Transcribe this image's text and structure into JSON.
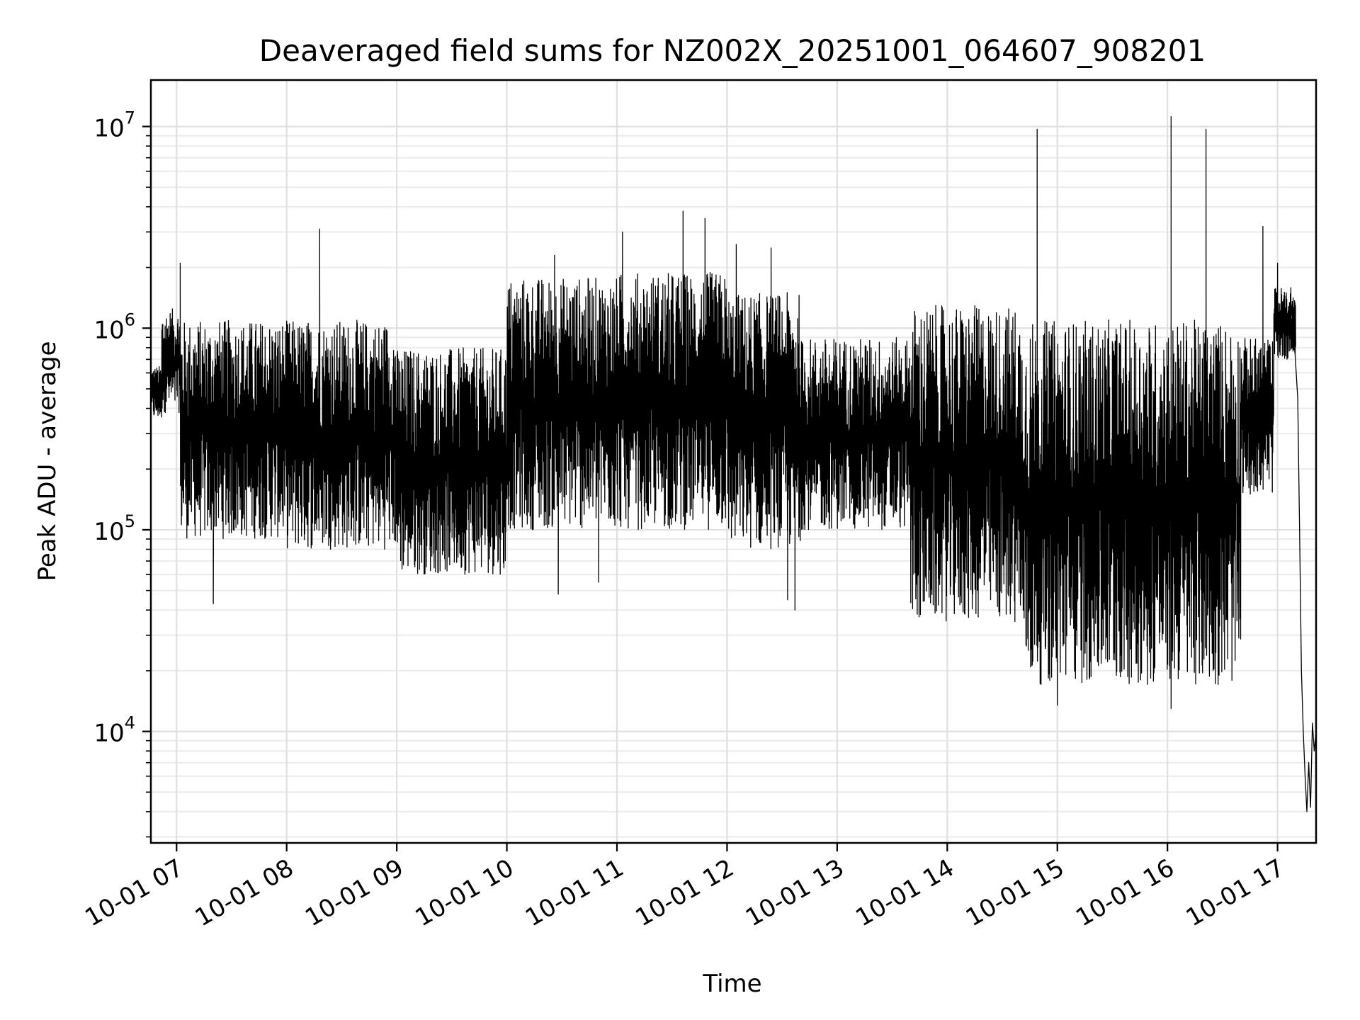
{
  "chart_data": {
    "type": "line",
    "title": "Deaveraged field sums for NZ002X_20251001_064607_908201",
    "xlabel": "Time",
    "ylabel": "Peak ADU - average",
    "yscale": "log",
    "ylim": [
      2800,
      17000000
    ],
    "xlim": [
      "2025-10-01 06:46",
      "2025-10-01 17:21"
    ],
    "grid": true,
    "line_color": "#000000",
    "x_ticks": [
      "10-01 07",
      "10-01 08",
      "10-01 09",
      "10-01 10",
      "10-01 11",
      "10-01 12",
      "10-01 13",
      "10-01 14",
      "10-01 15",
      "10-01 16",
      "10-01 17"
    ],
    "x_tick_times": [
      "2025-10-01 07:00",
      "2025-10-01 08:00",
      "2025-10-01 09:00",
      "2025-10-01 10:00",
      "2025-10-01 11:00",
      "2025-10-01 12:00",
      "2025-10-01 13:00",
      "2025-10-01 14:00",
      "2025-10-01 15:00",
      "2025-10-01 16:00",
      "2025-10-01 17:00"
    ],
    "y_ticks": [
      {
        "value": 10000,
        "base": "10",
        "exp": "4"
      },
      {
        "value": 100000,
        "base": "10",
        "exp": "5"
      },
      {
        "value": 1000000,
        "base": "10",
        "exp": "6"
      },
      {
        "value": 10000000,
        "base": "10",
        "exp": "7"
      }
    ],
    "series": [
      {
        "segments": [
          {
            "start": "2025-10-01 06:46",
            "end": "2025-10-01 06:52",
            "low": 350000,
            "high": 650000
          },
          {
            "start": "2025-10-01 06:52",
            "end": "2025-10-01 07:02",
            "low": 380000,
            "high": 1250000
          },
          {
            "start": "2025-10-01 07:02",
            "end": "2025-10-01 08:00",
            "low": 90000,
            "high": 1100000
          },
          {
            "start": "2025-10-01 08:00",
            "end": "2025-10-01 09:00",
            "low": 80000,
            "high": 1100000
          },
          {
            "start": "2025-10-01 09:00",
            "end": "2025-10-01 10:00",
            "low": 60000,
            "high": 800000
          },
          {
            "start": "2025-10-01 10:00",
            "end": "2025-10-01 11:00",
            "low": 100000,
            "high": 1800000
          },
          {
            "start": "2025-10-01 11:00",
            "end": "2025-10-01 12:00",
            "low": 100000,
            "high": 1900000
          },
          {
            "start": "2025-10-01 12:00",
            "end": "2025-10-01 12:40",
            "low": 80000,
            "high": 1500000
          },
          {
            "start": "2025-10-01 12:40",
            "end": "2025-10-01 13:40",
            "low": 100000,
            "high": 900000
          },
          {
            "start": "2025-10-01 13:40",
            "end": "2025-10-01 14:40",
            "low": 35000,
            "high": 1300000
          },
          {
            "start": "2025-10-01 14:40",
            "end": "2025-10-01 16:40",
            "low": 17000,
            "high": 1100000
          },
          {
            "start": "2025-10-01 16:40",
            "end": "2025-10-01 16:58",
            "low": 150000,
            "high": 900000
          },
          {
            "start": "2025-10-01 16:58",
            "end": "2025-10-01 17:10",
            "low": 700000,
            "high": 1600000
          }
        ],
        "spikes": [
          {
            "t": "2025-10-01 07:02",
            "v": 2100000
          },
          {
            "t": "2025-10-01 07:20",
            "v": 43000
          },
          {
            "t": "2025-10-01 08:18",
            "v": 3100000
          },
          {
            "t": "2025-10-01 10:26",
            "v": 2300000
          },
          {
            "t": "2025-10-01 10:28",
            "v": 48000
          },
          {
            "t": "2025-10-01 10:50",
            "v": 55000
          },
          {
            "t": "2025-10-01 11:03",
            "v": 3000000
          },
          {
            "t": "2025-10-01 11:36",
            "v": 3800000
          },
          {
            "t": "2025-10-01 11:48",
            "v": 3500000
          },
          {
            "t": "2025-10-01 12:05",
            "v": 2600000
          },
          {
            "t": "2025-10-01 12:24",
            "v": 2500000
          },
          {
            "t": "2025-10-01 12:33",
            "v": 45000
          },
          {
            "t": "2025-10-01 12:37",
            "v": 40000
          },
          {
            "t": "2025-10-01 14:49",
            "v": 9700000
          },
          {
            "t": "2025-10-01 15:00",
            "v": 13500
          },
          {
            "t": "2025-10-01 16:02",
            "v": 11200000
          },
          {
            "t": "2025-10-01 16:02",
            "v": 13000
          },
          {
            "t": "2025-10-01 16:21",
            "v": 9700000
          },
          {
            "t": "2025-10-01 16:52",
            "v": 3200000
          },
          {
            "t": "2025-10-01 17:00",
            "v": 2100000
          }
        ],
        "tail": [
          {
            "t": "2025-10-01 17:07",
            "v": 1400000
          },
          {
            "t": "2025-10-01 17:09",
            "v": 900000
          },
          {
            "t": "2025-10-01 17:11",
            "v": 450000
          },
          {
            "t": "2025-10-01 17:12",
            "v": 100000
          },
          {
            "t": "2025-10-01 17:13",
            "v": 20000
          },
          {
            "t": "2025-10-01 17:14",
            "v": 10000
          },
          {
            "t": "2025-10-01 17:15",
            "v": 6000
          },
          {
            "t": "2025-10-01 17:16",
            "v": 4000
          },
          {
            "t": "2025-10-01 17:17",
            "v": 7000
          },
          {
            "t": "2025-10-01 17:18",
            "v": 4200
          },
          {
            "t": "2025-10-01 17:19",
            "v": 11000
          },
          {
            "t": "2025-10-01 17:20",
            "v": 8000
          },
          {
            "t": "2025-10-01 17:21",
            "v": 10000
          }
        ]
      }
    ]
  }
}
